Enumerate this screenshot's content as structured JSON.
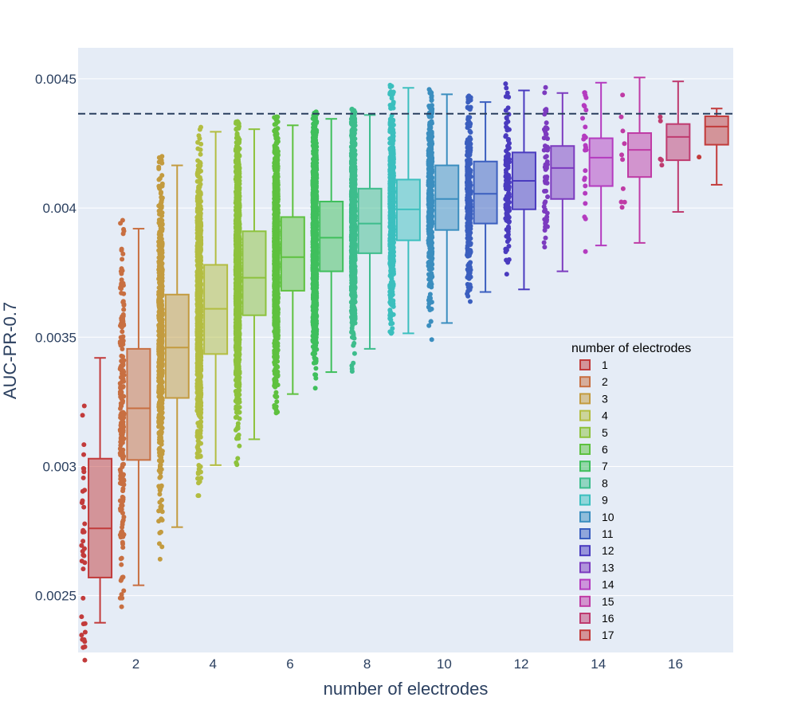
{
  "chart_data": {
    "type": "box",
    "title": "",
    "xlabel": "number of electrodes",
    "ylabel": "AUC-PR-0.7",
    "xlim": [
      0.5,
      17.5
    ],
    "ylim": [
      0.00228,
      0.00462
    ],
    "x_ticks": [
      2,
      4,
      6,
      8,
      10,
      12,
      14,
      16
    ],
    "x_tick_labels": [
      "2",
      "4",
      "6",
      "8",
      "10",
      "12",
      "14",
      "16"
    ],
    "y_ticks": [
      0.0025,
      0.003,
      0.0035,
      0.004,
      0.0045
    ],
    "y_tick_labels": [
      "0.0025",
      "0.003",
      "0.0035",
      "0.004",
      "0.0045"
    ],
    "reference_line": {
      "y": 0.004365,
      "style": "dashed"
    },
    "legend": {
      "title": "number of electrodes",
      "position": "right"
    },
    "series": [
      {
        "name": "1",
        "x": 1,
        "color": "#c23b3b",
        "min": 0.002395,
        "q1": 0.00257,
        "median": 0.00276,
        "q3": 0.00303,
        "max": 0.00342,
        "n_points": 40
      },
      {
        "name": "2",
        "x": 2,
        "color": "#c86f41",
        "min": 0.00254,
        "q1": 0.003025,
        "median": 0.003225,
        "q3": 0.003455,
        "max": 0.00392,
        "n_points": 220
      },
      {
        "name": "3",
        "x": 3,
        "color": "#c39b3f",
        "min": 0.002765,
        "q1": 0.003265,
        "median": 0.00346,
        "q3": 0.003665,
        "max": 0.004165,
        "n_points": 650
      },
      {
        "name": "4",
        "x": 4,
        "color": "#b3bd41",
        "min": 0.003005,
        "q1": 0.003435,
        "median": 0.00361,
        "q3": 0.00378,
        "max": 0.004295,
        "n_points": 1100
      },
      {
        "name": "5",
        "x": 5,
        "color": "#8dc23d",
        "min": 0.003105,
        "q1": 0.003585,
        "median": 0.00373,
        "q3": 0.00391,
        "max": 0.004305,
        "n_points": 1400
      },
      {
        "name": "6",
        "x": 6,
        "color": "#5ec13f",
        "min": 0.00328,
        "q1": 0.00368,
        "median": 0.00381,
        "q3": 0.003965,
        "max": 0.00432,
        "n_points": 1500
      },
      {
        "name": "7",
        "x": 7,
        "color": "#3fbf5c",
        "min": 0.003365,
        "q1": 0.003755,
        "median": 0.003885,
        "q3": 0.004025,
        "max": 0.004345,
        "n_points": 1400
      },
      {
        "name": "8",
        "x": 8,
        "color": "#3dbd8c",
        "min": 0.003455,
        "q1": 0.003825,
        "median": 0.00394,
        "q3": 0.004075,
        "max": 0.00436,
        "n_points": 1100
      },
      {
        "name": "9",
        "x": 9,
        "color": "#3bbfbe",
        "min": 0.003515,
        "q1": 0.003875,
        "median": 0.003995,
        "q3": 0.00411,
        "max": 0.004465,
        "n_points": 800
      },
      {
        "name": "10",
        "x": 10,
        "color": "#3b8ebf",
        "min": 0.003555,
        "q1": 0.003915,
        "median": 0.004035,
        "q3": 0.004165,
        "max": 0.00444,
        "n_points": 500
      },
      {
        "name": "11",
        "x": 11,
        "color": "#3b5fbf",
        "min": 0.003675,
        "q1": 0.00394,
        "median": 0.004055,
        "q3": 0.00418,
        "max": 0.00441,
        "n_points": 280
      },
      {
        "name": "12",
        "x": 12,
        "color": "#4a3bbf",
        "min": 0.003685,
        "q1": 0.003995,
        "median": 0.004105,
        "q3": 0.004215,
        "max": 0.004455,
        "n_points": 130
      },
      {
        "name": "13",
        "x": 13,
        "color": "#7c3bbf",
        "min": 0.003755,
        "q1": 0.004035,
        "median": 0.004155,
        "q3": 0.00424,
        "max": 0.004445,
        "n_points": 60
      },
      {
        "name": "14",
        "x": 14,
        "color": "#b43bbf",
        "min": 0.003855,
        "q1": 0.004085,
        "median": 0.004195,
        "q3": 0.00427,
        "max": 0.004485,
        "n_points": 25
      },
      {
        "name": "15",
        "x": 15,
        "color": "#bf3ba5",
        "min": 0.003865,
        "q1": 0.00412,
        "median": 0.004225,
        "q3": 0.00429,
        "max": 0.004505,
        "n_points": 10
      },
      {
        "name": "16",
        "x": 16,
        "color": "#bf3b6f",
        "min": 0.003985,
        "q1": 0.004185,
        "median": 0.004275,
        "q3": 0.004325,
        "max": 0.00449,
        "n_points": 5
      },
      {
        "name": "17",
        "x": 17,
        "color": "#c23b3b",
        "min": 0.00409,
        "q1": 0.004245,
        "median": 0.004315,
        "q3": 0.004355,
        "max": 0.004385,
        "n_points": 1
      }
    ]
  }
}
